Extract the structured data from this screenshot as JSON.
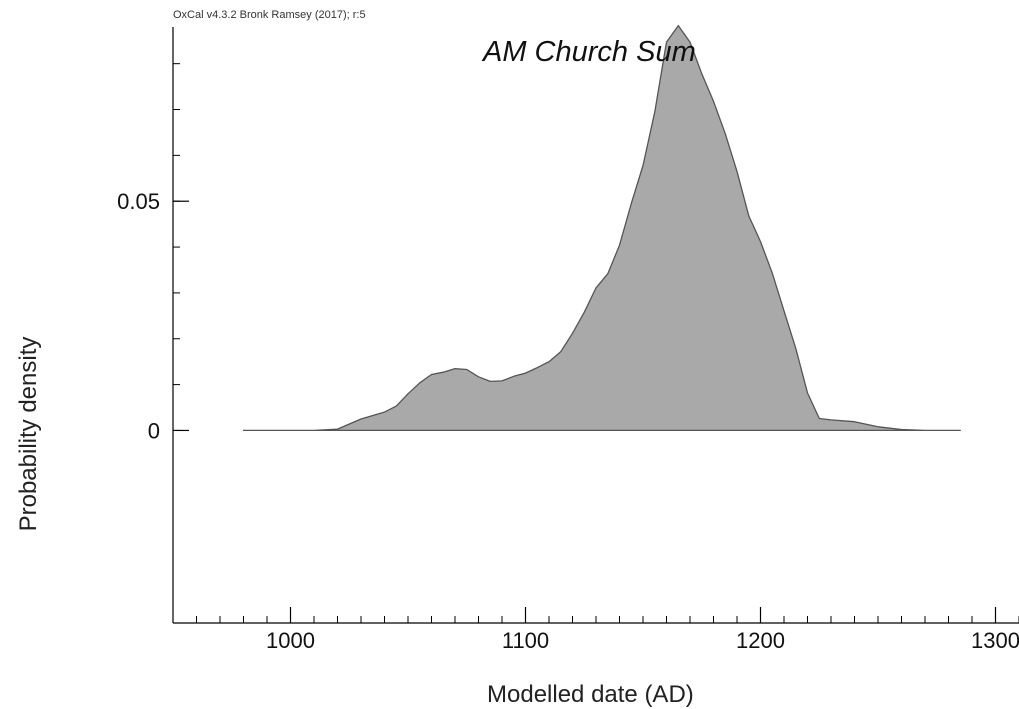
{
  "credit": "OxCal v4.3.2 Bronk Ramsey (2017); r:5",
  "chart_data": {
    "type": "area",
    "title": "AM Church Sum",
    "xlabel": "Modelled date (AD)",
    "ylabel": "Probability density",
    "xlim": [
      950,
      1310
    ],
    "ylim": [
      -0.042,
      0.088
    ],
    "x_ticks": [
      1000,
      1100,
      1200,
      1300
    ],
    "x_tick_labels": [
      "1000",
      "1100",
      "1200",
      "1300"
    ],
    "y_ticks": [
      0,
      0.05
    ],
    "y_tick_labels": [
      "0",
      "0.05"
    ],
    "grid": false,
    "fill_color": "#a9a9a9",
    "stroke_color": "#555555",
    "series": [
      {
        "x": [
          980,
          1000,
          1010,
          1020,
          1030,
          1040,
          1045,
          1050,
          1055,
          1060,
          1065,
          1070,
          1075,
          1080,
          1085,
          1090,
          1095,
          1100,
          1105,
          1110,
          1115,
          1120,
          1125,
          1130,
          1135,
          1140,
          1145,
          1150,
          1155,
          1160,
          1165,
          1170,
          1175,
          1180,
          1185,
          1190,
          1195,
          1200,
          1205,
          1210,
          1215,
          1220,
          1225,
          1230,
          1240,
          1250,
          1260,
          1270,
          1285
        ],
        "y": [
          0,
          0,
          0,
          0.0003,
          0.0025,
          0.004,
          0.0053,
          0.008,
          0.0104,
          0.0122,
          0.0127,
          0.0135,
          0.0133,
          0.0117,
          0.0107,
          0.0108,
          0.0118,
          0.0125,
          0.0137,
          0.015,
          0.0172,
          0.0212,
          0.0258,
          0.0311,
          0.0342,
          0.0404,
          0.0495,
          0.0578,
          0.0695,
          0.0847,
          0.0883,
          0.0847,
          0.0778,
          0.0718,
          0.0647,
          0.0565,
          0.0468,
          0.0412,
          0.0343,
          0.0261,
          0.0179,
          0.0082,
          0.0026,
          0.0023,
          0.0019,
          0.0008,
          0.0002,
          0,
          0
        ]
      }
    ]
  }
}
